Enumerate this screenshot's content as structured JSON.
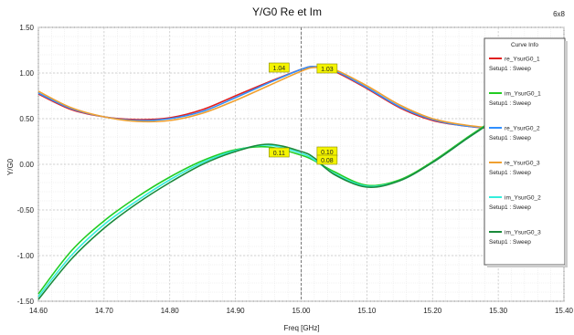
{
  "chart_data": {
    "type": "line",
    "title": "Y/G0 Re et Im",
    "corner_tag": "6x8",
    "xlabel": "Freq [GHz]",
    "ylabel": "Y/G0",
    "xlim": [
      14.6,
      15.4
    ],
    "ylim": [
      -1.5,
      1.5
    ],
    "x_ticks": [
      14.6,
      14.7,
      14.8,
      14.9,
      15.0,
      15.1,
      15.2,
      15.3,
      15.4
    ],
    "x_tick_labels": [
      "14.60",
      "14.70",
      "14.80",
      "14.90",
      "15.00",
      "15.10",
      "15.20",
      "15.30",
      "15.40"
    ],
    "y_ticks": [
      1.5,
      1.0,
      0.5,
      0.0,
      -0.5,
      -1.0,
      -1.5
    ],
    "y_tick_labels": [
      "1.50",
      "1.00",
      "0.50",
      "0.00",
      "-0.50",
      "-1.00",
      "-1.50"
    ],
    "grid": true,
    "legend": {
      "title": "Curve Info",
      "placement": "right",
      "entries": [
        {
          "name": "re_YsurG0_1",
          "sub": "Setup1 : Sweep",
          "color": "#e02020"
        },
        {
          "name": "im_YsurG0_1",
          "sub": "Setup1 : Sweep",
          "color": "#22cc22"
        },
        {
          "name": "re_YsurG0_2",
          "sub": "Setup1 : Sweep",
          "color": "#2f8fff"
        },
        {
          "name": "re_YsurG0_3",
          "sub": "Setup1 : Sweep",
          "color": "#f0a030"
        },
        {
          "name": "im_YsurG0_2",
          "sub": "Setup1 : Sweep",
          "color": "#33eedd"
        },
        {
          "name": "im_YsurG0_3",
          "sub": "Setup1 : Sweep",
          "color": "#1a8a3a"
        }
      ]
    },
    "series": [
      {
        "name": "re_YsurG0_1",
        "color": "#e02020",
        "x": [
          14.6,
          14.65,
          14.7,
          14.75,
          14.8,
          14.85,
          14.9,
          14.95,
          15.0,
          15.02,
          15.05,
          15.1,
          15.15,
          15.2,
          15.25,
          15.3,
          15.35,
          15.4
        ],
        "y": [
          0.77,
          0.6,
          0.52,
          0.49,
          0.51,
          0.6,
          0.75,
          0.9,
          1.04,
          1.07,
          1.02,
          0.83,
          0.62,
          0.48,
          0.42,
          0.39,
          0.42,
          0.48
        ]
      },
      {
        "name": "re_YsurG0_2",
        "color": "#2f8fff",
        "x": [
          14.6,
          14.65,
          14.7,
          14.75,
          14.8,
          14.85,
          14.9,
          14.95,
          15.0,
          15.02,
          15.05,
          15.1,
          15.15,
          15.2,
          15.25,
          15.3,
          15.35,
          15.4
        ],
        "y": [
          0.78,
          0.61,
          0.52,
          0.48,
          0.5,
          0.58,
          0.73,
          0.89,
          1.04,
          1.07,
          1.03,
          0.84,
          0.63,
          0.49,
          0.42,
          0.4,
          0.43,
          0.49
        ]
      },
      {
        "name": "re_YsurG0_3",
        "color": "#f0a030",
        "x": [
          14.6,
          14.65,
          14.7,
          14.75,
          14.8,
          14.85,
          14.9,
          14.95,
          15.0,
          15.02,
          15.05,
          15.1,
          15.15,
          15.2,
          15.25,
          15.3,
          15.35,
          15.4
        ],
        "y": [
          0.8,
          0.62,
          0.52,
          0.47,
          0.48,
          0.56,
          0.7,
          0.86,
          1.02,
          1.06,
          1.04,
          0.86,
          0.65,
          0.5,
          0.43,
          0.4,
          0.43,
          0.5
        ]
      },
      {
        "name": "im_YsurG0_1",
        "color": "#22cc22",
        "x": [
          14.6,
          14.65,
          14.7,
          14.75,
          14.8,
          14.85,
          14.9,
          14.95,
          15.0,
          15.02,
          15.05,
          15.1,
          15.15,
          15.2,
          15.25,
          15.3,
          15.35,
          15.4
        ],
        "y": [
          -1.42,
          -0.95,
          -0.62,
          -0.36,
          -0.14,
          0.04,
          0.16,
          0.19,
          0.1,
          0.04,
          -0.08,
          -0.23,
          -0.17,
          0.03,
          0.28,
          0.53,
          0.85,
          1.32
        ]
      },
      {
        "name": "im_YsurG0_2",
        "color": "#33eedd",
        "x": [
          14.6,
          14.65,
          14.7,
          14.75,
          14.8,
          14.85,
          14.9,
          14.95,
          15.0,
          15.02,
          15.05,
          15.1,
          15.15,
          15.2,
          15.25,
          15.3,
          15.35,
          15.4
        ],
        "y": [
          -1.45,
          -1.0,
          -0.66,
          -0.4,
          -0.17,
          0.02,
          0.15,
          0.21,
          0.12,
          0.05,
          -0.1,
          -0.24,
          -0.18,
          0.02,
          0.27,
          0.52,
          0.84,
          1.31
        ]
      },
      {
        "name": "im_YsurG0_3",
        "color": "#1a8a3a",
        "x": [
          14.6,
          14.65,
          14.7,
          14.75,
          14.8,
          14.85,
          14.9,
          14.95,
          15.0,
          15.02,
          15.05,
          15.1,
          15.15,
          15.2,
          15.25,
          15.3,
          15.35,
          15.4
        ],
        "y": [
          -1.48,
          -1.04,
          -0.7,
          -0.43,
          -0.2,
          0.0,
          0.14,
          0.22,
          0.14,
          0.07,
          -0.11,
          -0.25,
          -0.18,
          0.02,
          0.27,
          0.52,
          0.84,
          1.31
        ]
      }
    ],
    "markers": [
      {
        "label": "1.04",
        "x": 14.99,
        "y": 1.04
      },
      {
        "label": "1.03",
        "x": 15.02,
        "y": 1.03
      },
      {
        "label": "0.11",
        "x": 14.99,
        "y": 0.11
      },
      {
        "label": "0.10",
        "x": 15.02,
        "y": 0.1
      },
      {
        "label": "0.08",
        "x": 15.02,
        "y": 0.08
      }
    ],
    "marker_line_x": 15.0
  }
}
